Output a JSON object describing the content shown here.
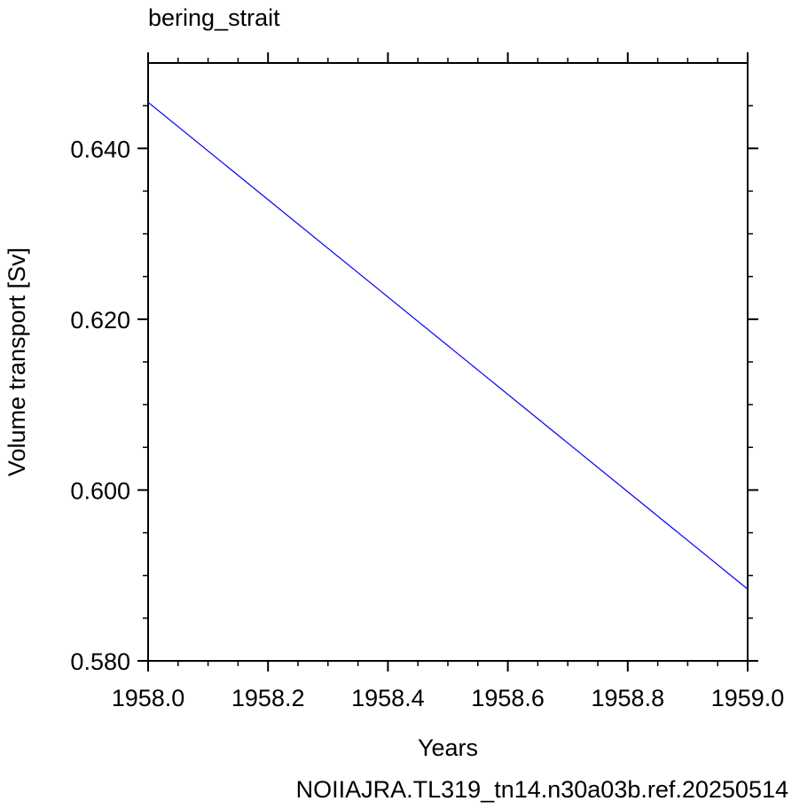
{
  "chart_data": {
    "type": "line",
    "title": "bering_strait",
    "xlabel": "Years",
    "ylabel": "Volume transport [Sv]",
    "footer": "NOIIAJRA.TL319_tn14.n30a03b.ref.20250514",
    "xlim": [
      1958.0,
      1959.0
    ],
    "ylim": [
      0.58,
      0.65
    ],
    "x_ticks": [
      1958.0,
      1958.2,
      1958.4,
      1958.6,
      1958.8,
      1959.0
    ],
    "x_tick_labels": [
      "1958.0",
      "1958.2",
      "1958.4",
      "1958.6",
      "1958.8",
      "1959.0"
    ],
    "y_ticks": [
      0.58,
      0.6,
      0.62,
      0.64
    ],
    "y_tick_labels": [
      "0.580",
      "0.600",
      "0.620",
      "0.640"
    ],
    "series": [
      {
        "x": [
          1958.0,
          1959.0
        ],
        "y": [
          0.6454,
          0.5884
        ]
      }
    ],
    "grid": false,
    "legend": "none"
  },
  "colors": {
    "line": "#0000ff",
    "footer": "#0000ff",
    "axis": "#000000"
  }
}
